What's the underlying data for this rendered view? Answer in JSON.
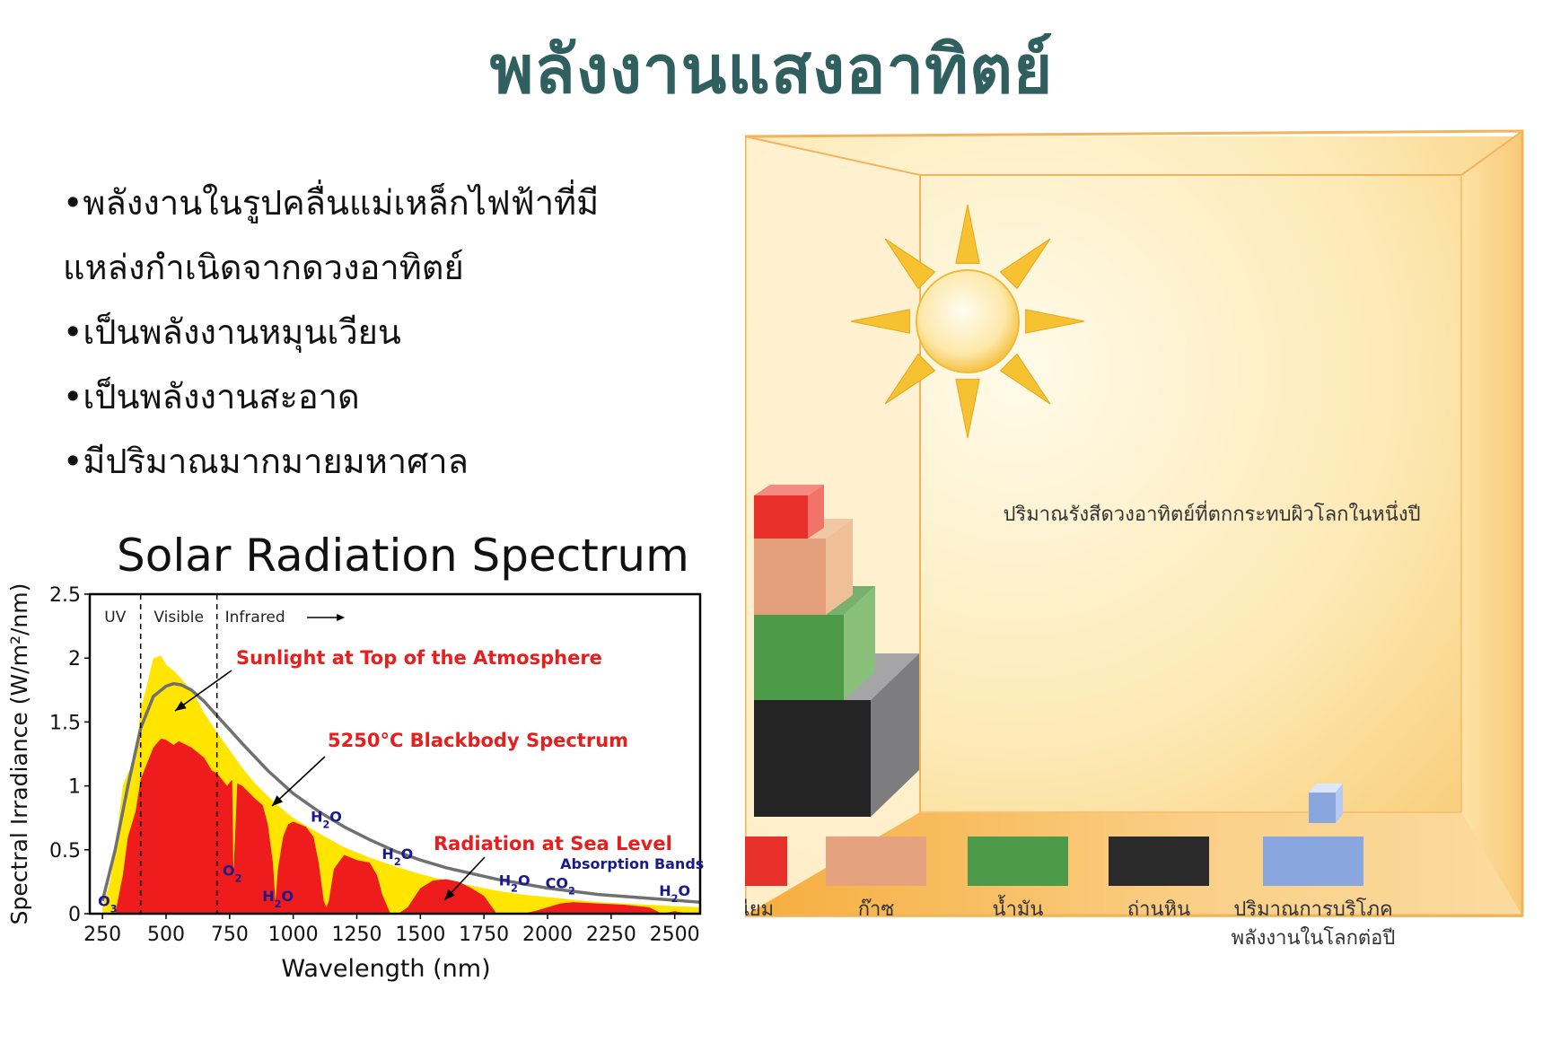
{
  "title": "พลังงานแสงอาทิตย์",
  "bullets": [
    "•พลังงานในรูปคลื่นแม่เหล็กไฟฟ้าที่มี",
    "แหล่งกำเนิดจากดวงอาทิตย์",
    "•เป็นพลังงานหมุนเวียน",
    "•เป็นพลังงานสะอาด",
    "•มีปริมาณมากมายมหาศาล"
  ],
  "colors": {
    "title": "#2f5f5f",
    "toa_fill": "#ffe500",
    "sea_fill": "#ee1c1c",
    "blackbody": "#707070",
    "annotation_red": "#e61e1e",
    "molecule_label": "#1a1a8c"
  },
  "chart_data": [
    {
      "type": "area",
      "title": "Solar Radiation Spectrum",
      "xlabel": "Wavelength (nm)",
      "ylabel": "Spectral Irradiance (W/m²/nm)",
      "xlim": [
        200,
        2600
      ],
      "ylim": [
        0,
        2.5
      ],
      "xticks": [
        250,
        500,
        750,
        1000,
        1250,
        1500,
        1750,
        2000,
        2250,
        2500
      ],
      "yticks": [
        0,
        0.5,
        1,
        1.5,
        2,
        2.5
      ],
      "ytick_labels": [
        "0",
        "0.5",
        "1",
        "1.5",
        "2",
        "2.5"
      ],
      "regions": [
        {
          "label": "UV",
          "from": 200,
          "to": 400
        },
        {
          "label": "Visible",
          "from": 400,
          "to": 700
        },
        {
          "label": "Infrared",
          "from": 700,
          "to": 2600
        }
      ],
      "series": [
        {
          "name": "Sunlight at Top of the Atmosphere",
          "x": [
            250,
            280,
            300,
            330,
            350,
            380,
            400,
            420,
            450,
            480,
            500,
            530,
            550,
            600,
            650,
            700,
            750,
            800,
            850,
            900,
            950,
            1000,
            1100,
            1200,
            1300,
            1400,
            1500,
            1600,
            1700,
            1800,
            1900,
            2000,
            2100,
            2200,
            2300,
            2400,
            2500,
            2600
          ],
          "y": [
            0.05,
            0.25,
            0.5,
            1.0,
            1.1,
            1.2,
            1.6,
            1.75,
            2.0,
            2.02,
            1.95,
            1.9,
            1.86,
            1.75,
            1.57,
            1.42,
            1.28,
            1.14,
            1.02,
            0.92,
            0.83,
            0.75,
            0.63,
            0.52,
            0.44,
            0.37,
            0.31,
            0.26,
            0.22,
            0.18,
            0.15,
            0.13,
            0.11,
            0.09,
            0.08,
            0.07,
            0.06,
            0.05
          ]
        },
        {
          "name": "5250°C Blackbody Spectrum",
          "x": [
            250,
            300,
            350,
            400,
            450,
            500,
            530,
            560,
            600,
            650,
            700,
            800,
            900,
            1000,
            1100,
            1200,
            1300,
            1400,
            1500,
            1600,
            1800,
            2000,
            2200,
            2400,
            2600
          ],
          "y": [
            0.1,
            0.5,
            1.0,
            1.45,
            1.7,
            1.78,
            1.8,
            1.79,
            1.75,
            1.66,
            1.55,
            1.33,
            1.12,
            0.94,
            0.8,
            0.68,
            0.58,
            0.49,
            0.42,
            0.36,
            0.27,
            0.2,
            0.15,
            0.12,
            0.09
          ]
        },
        {
          "name": "Radiation at Sea Level",
          "x": [
            300,
            330,
            350,
            380,
            400,
            430,
            450,
            480,
            500,
            530,
            550,
            600,
            650,
            680,
            700,
            720,
            740,
            760,
            765,
            780,
            800,
            850,
            880,
            900,
            920,
            930,
            940,
            960,
            980,
            1000,
            1050,
            1080,
            1100,
            1120,
            1130,
            1140,
            1160,
            1200,
            1250,
            1300,
            1330,
            1350,
            1380,
            1400,
            1420,
            1450,
            1500,
            1550,
            1600,
            1650,
            1700,
            1750,
            1800,
            1850,
            1900,
            1950,
            2000,
            2050,
            2100,
            2200,
            2300,
            2400,
            2450,
            2500,
            2550
          ],
          "y": [
            0.0,
            0.3,
            0.6,
            0.8,
            1.05,
            1.2,
            1.3,
            1.37,
            1.36,
            1.32,
            1.35,
            1.3,
            1.22,
            1.12,
            1.1,
            1.05,
            1.0,
            1.05,
            0.3,
            1.02,
            1.0,
            0.9,
            0.85,
            0.7,
            0.4,
            0.1,
            0.35,
            0.6,
            0.7,
            0.72,
            0.68,
            0.6,
            0.4,
            0.1,
            0.05,
            0.1,
            0.35,
            0.46,
            0.42,
            0.4,
            0.3,
            0.15,
            0.01,
            0.0,
            0.01,
            0.05,
            0.2,
            0.26,
            0.27,
            0.25,
            0.2,
            0.14,
            0.0,
            0.0,
            0.0,
            0.02,
            0.05,
            0.08,
            0.09,
            0.08,
            0.07,
            0.05,
            0.0,
            0.02,
            0.0
          ]
        }
      ],
      "annotations": [
        {
          "text": "Sunlight at Top of the Atmosphere",
          "color": "red"
        },
        {
          "text": "5250°C Blackbody Spectrum",
          "color": "red"
        },
        {
          "text": "Radiation at Sea Level",
          "color": "red"
        },
        {
          "text": "Absorption Bands",
          "color": "navy"
        }
      ],
      "molecule_labels": [
        {
          "text": "O3",
          "x": 270,
          "y": 0.06
        },
        {
          "text": "O2",
          "x": 760,
          "y": 0.3
        },
        {
          "text": "H2O",
          "x": 940,
          "y": 0.1
        },
        {
          "text": "H2O",
          "x": 1130,
          "y": 0.72
        },
        {
          "text": "H2O",
          "x": 1410,
          "y": 0.43
        },
        {
          "text": "H2O",
          "x": 1870,
          "y": 0.22
        },
        {
          "text": "CO2",
          "x": 2050,
          "y": 0.2
        },
        {
          "text": "H2O",
          "x": 2500,
          "y": 0.14
        }
      ]
    },
    {
      "type": "bar",
      "caption": "ปริมาณรังสีดวงอาทิตย์ที่ตกกระทบผิวโลกในหนึ่งปี",
      "categories": [
        "ยูเรเนียม",
        "ก๊าซ",
        "น้ำมัน",
        "ถ่านหิน",
        "ปริมาณการบริโภคพลังงานในโลกต่อปี"
      ],
      "category_lines": [
        [
          "ยูเรเนียม"
        ],
        [
          "ก๊าซ"
        ],
        [
          "น้ำมัน"
        ],
        [
          "ถ่านหิน"
        ],
        [
          "ปริมาณการบริโภค",
          "พลังงานในโลกต่อปี"
        ]
      ],
      "values": [
        0.6,
        1.1,
        1.0,
        1.3,
        0.05
      ],
      "colors": [
        "#e8302b",
        "#e4a27e",
        "#4c9a4a",
        "#2a2a2a",
        "#8aa6df"
      ]
    }
  ]
}
